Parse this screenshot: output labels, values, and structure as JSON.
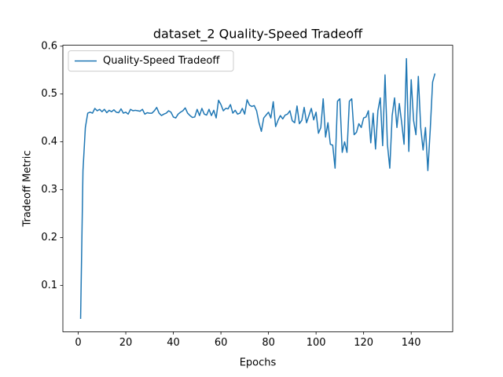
{
  "chart_data": {
    "type": "line",
    "title": "dataset_2 Quality-Speed Tradeoff",
    "xlabel": "Epochs",
    "ylabel": "Tradeoff Metric",
    "x": [
      1,
      2,
      3,
      4,
      5,
      6,
      7,
      8,
      9,
      10,
      11,
      12,
      13,
      14,
      15,
      16,
      17,
      18,
      19,
      20,
      21,
      22,
      23,
      24,
      25,
      26,
      27,
      28,
      29,
      30,
      31,
      32,
      33,
      34,
      35,
      36,
      37,
      38,
      39,
      40,
      41,
      42,
      43,
      44,
      45,
      46,
      47,
      48,
      49,
      50,
      51,
      52,
      53,
      54,
      55,
      56,
      57,
      58,
      59,
      60,
      61,
      62,
      63,
      64,
      65,
      66,
      67,
      68,
      69,
      70,
      71,
      72,
      73,
      74,
      75,
      76,
      77,
      78,
      79,
      80,
      81,
      82,
      83,
      84,
      85,
      86,
      87,
      88,
      89,
      90,
      91,
      92,
      93,
      94,
      95,
      96,
      97,
      98,
      99,
      100,
      101,
      102,
      103,
      104,
      105,
      106,
      107,
      108,
      109,
      110,
      111,
      112,
      113,
      114,
      115,
      116,
      117,
      118,
      119,
      120,
      121,
      122,
      123,
      124,
      125,
      126,
      127,
      128,
      129,
      130,
      131,
      132,
      133,
      134,
      135,
      136,
      137,
      138,
      139,
      140,
      141,
      142,
      143,
      144,
      145,
      146,
      147,
      148,
      149,
      150
    ],
    "series": [
      {
        "name": "Quality-Speed Tradeoff",
        "color": "#1f77b4",
        "values": [
          0.03,
          0.34,
          0.43,
          0.46,
          0.462,
          0.46,
          0.47,
          0.465,
          0.468,
          0.463,
          0.468,
          0.461,
          0.466,
          0.463,
          0.467,
          0.462,
          0.461,
          0.469,
          0.46,
          0.462,
          0.458,
          0.468,
          0.465,
          0.466,
          0.465,
          0.464,
          0.468,
          0.458,
          0.461,
          0.46,
          0.46,
          0.465,
          0.472,
          0.46,
          0.455,
          0.458,
          0.46,
          0.465,
          0.462,
          0.452,
          0.45,
          0.458,
          0.462,
          0.465,
          0.471,
          0.46,
          0.455,
          0.451,
          0.452,
          0.468,
          0.455,
          0.47,
          0.458,
          0.456,
          0.468,
          0.455,
          0.466,
          0.45,
          0.487,
          0.478,
          0.465,
          0.47,
          0.469,
          0.478,
          0.46,
          0.466,
          0.458,
          0.46,
          0.47,
          0.458,
          0.488,
          0.477,
          0.474,
          0.476,
          0.465,
          0.44,
          0.422,
          0.45,
          0.456,
          0.462,
          0.45,
          0.484,
          0.432,
          0.445,
          0.455,
          0.448,
          0.456,
          0.458,
          0.465,
          0.444,
          0.44,
          0.475,
          0.438,
          0.445,
          0.472,
          0.44,
          0.455,
          0.47,
          0.446,
          0.462,
          0.418,
          0.43,
          0.49,
          0.41,
          0.44,
          0.395,
          0.393,
          0.345,
          0.485,
          0.49,
          0.378,
          0.4,
          0.378,
          0.485,
          0.49,
          0.415,
          0.42,
          0.438,
          0.43,
          0.45,
          0.452,
          0.465,
          0.398,
          0.46,
          0.385,
          0.465,
          0.492,
          0.392,
          0.54,
          0.395,
          0.345,
          0.455,
          0.492,
          0.43,
          0.48,
          0.44,
          0.395,
          0.574,
          0.38,
          0.53,
          0.445,
          0.415,
          0.537,
          0.43,
          0.383,
          0.43,
          0.34,
          0.425,
          0.525,
          0.543
        ]
      }
    ],
    "xlim": [
      -6.45,
      157.45
    ],
    "ylim": [
      0.003,
      0.602
    ],
    "xticks": [
      0,
      20,
      40,
      60,
      80,
      100,
      120,
      140
    ],
    "yticks": [
      0.1,
      0.2,
      0.3,
      0.4,
      0.5,
      0.6
    ],
    "legend": "upper left"
  }
}
